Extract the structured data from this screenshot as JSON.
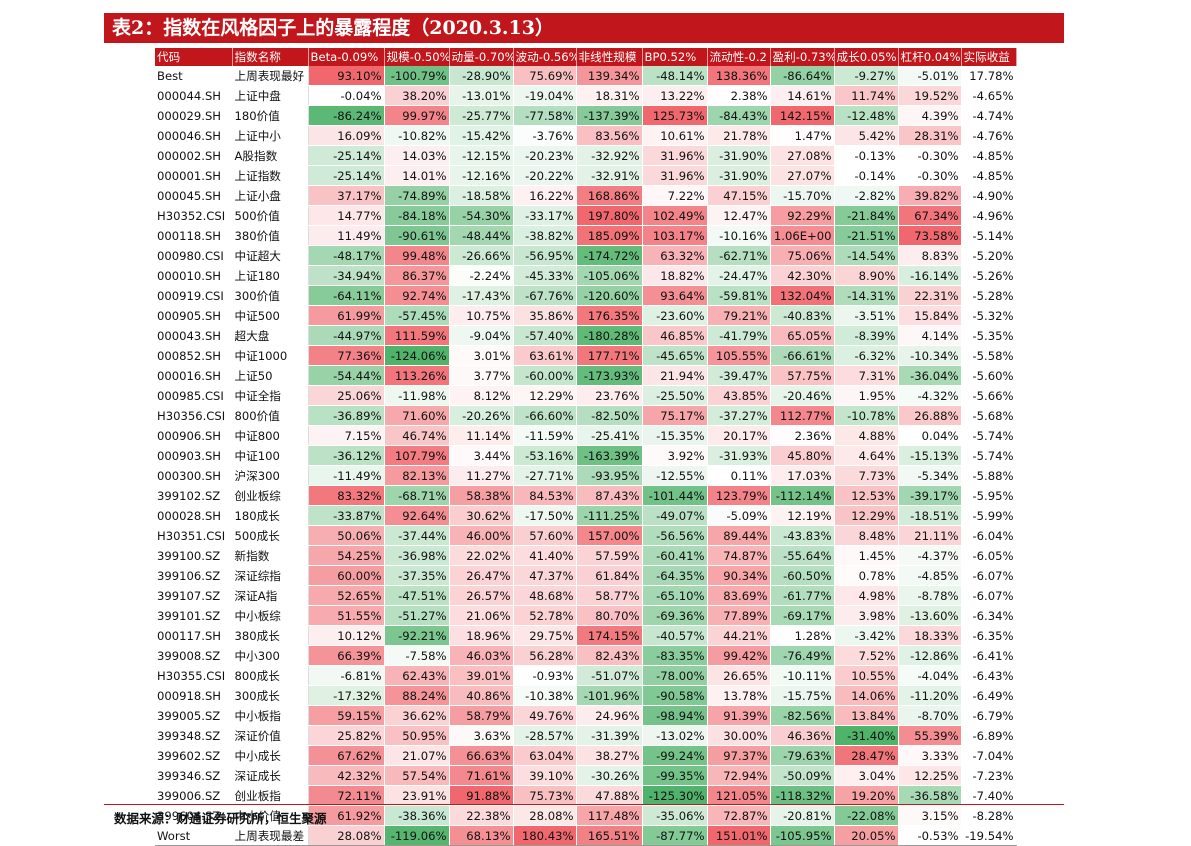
{
  "title": "表2：指数在风格因子上的暴露程度（2020.3.13）",
  "source": "数据来源：财通证券研究所，恒生聚源",
  "colors": {
    "header_bg": "#c0161c",
    "header_text": "#ffffff",
    "positive_max": "#f0686e",
    "negative_max": "#4fb36a"
  },
  "headers": [
    "代码",
    "指数名称",
    "Beta-0.09%",
    "规模-0.50%",
    "动量-0.70%",
    "波动-0.56%",
    "非线性规模",
    "BP0.52%",
    "流动性-0.2",
    "盈利-0.73%",
    "成长0.05%",
    "杠杆0.04%",
    "实际收益"
  ],
  "rows": [
    [
      "Best",
      "上周表现最好",
      "93.10%",
      "-100.79%",
      "-28.90%",
      "75.69%",
      "139.34%",
      "-48.14%",
      "138.36%",
      "-86.64%",
      "-9.27%",
      "-5.01%",
      "17.78%"
    ],
    [
      "000044.SH",
      "上证中盘",
      "-0.04%",
      "38.20%",
      "-13.01%",
      "-19.04%",
      "18.31%",
      "13.22%",
      "2.38%",
      "14.61%",
      "11.74%",
      "19.52%",
      "-4.65%"
    ],
    [
      "000029.SH",
      "180价值",
      "-86.24%",
      "99.97%",
      "-25.77%",
      "-77.58%",
      "-137.39%",
      "125.73%",
      "-84.43%",
      "142.15%",
      "-12.48%",
      "4.39%",
      "-4.74%"
    ],
    [
      "000046.SH",
      "上证中小",
      "16.09%",
      "-10.82%",
      "-15.42%",
      "-3.76%",
      "83.56%",
      "10.61%",
      "21.78%",
      "1.47%",
      "5.42%",
      "28.31%",
      "-4.76%"
    ],
    [
      "000002.SH",
      "A股指数",
      "-25.14%",
      "14.03%",
      "-12.15%",
      "-20.23%",
      "-32.92%",
      "31.96%",
      "-31.90%",
      "27.08%",
      "-0.13%",
      "-0.30%",
      "-4.85%"
    ],
    [
      "000001.SH",
      "上证指数",
      "-25.14%",
      "14.01%",
      "-12.16%",
      "-20.22%",
      "-32.91%",
      "31.96%",
      "-31.90%",
      "27.07%",
      "-0.14%",
      "-0.30%",
      "-4.85%"
    ],
    [
      "000045.SH",
      "上证小盘",
      "37.17%",
      "-74.89%",
      "-18.58%",
      "16.22%",
      "168.86%",
      "7.22%",
      "47.15%",
      "-15.70%",
      "-2.82%",
      "39.82%",
      "-4.90%"
    ],
    [
      "H30352.CSI",
      "500价值",
      "14.77%",
      "-84.18%",
      "-54.30%",
      "-33.17%",
      "197.80%",
      "102.49%",
      "12.47%",
      "92.29%",
      "-21.84%",
      "67.34%",
      "-4.96%"
    ],
    [
      "000118.SH",
      "380价值",
      "11.49%",
      "-90.61%",
      "-48.44%",
      "-38.82%",
      "185.09%",
      "103.17%",
      "-10.16%",
      "1.06E+00",
      "-21.51%",
      "73.58%",
      "-5.14%"
    ],
    [
      "000980.CSI",
      "中证超大",
      "-48.17%",
      "99.48%",
      "-26.66%",
      "-56.95%",
      "-174.72%",
      "63.32%",
      "-62.71%",
      "75.06%",
      "-14.54%",
      "8.83%",
      "-5.20%"
    ],
    [
      "000010.SH",
      "上证180",
      "-34.94%",
      "86.37%",
      "-2.24%",
      "-45.33%",
      "-105.06%",
      "18.82%",
      "-24.47%",
      "42.30%",
      "8.90%",
      "-16.14%",
      "-5.26%"
    ],
    [
      "000919.CSI",
      "300价值",
      "-64.11%",
      "92.74%",
      "-17.43%",
      "-67.76%",
      "-120.60%",
      "93.64%",
      "-59.81%",
      "132.04%",
      "-14.31%",
      "22.31%",
      "-5.28%"
    ],
    [
      "000905.SH",
      "中证500",
      "61.99%",
      "-57.45%",
      "10.75%",
      "35.86%",
      "176.35%",
      "-23.60%",
      "79.21%",
      "-40.83%",
      "-3.51%",
      "15.84%",
      "-5.32%"
    ],
    [
      "000043.SH",
      "超大盘",
      "-44.97%",
      "111.59%",
      "-9.04%",
      "-57.40%",
      "-180.28%",
      "46.85%",
      "-41.79%",
      "65.05%",
      "-8.39%",
      "4.14%",
      "-5.35%"
    ],
    [
      "000852.SH",
      "中证1000",
      "77.36%",
      "-124.06%",
      "3.01%",
      "63.61%",
      "177.71%",
      "-45.65%",
      "105.55%",
      "-66.61%",
      "-6.32%",
      "-10.34%",
      "-5.58%"
    ],
    [
      "000016.SH",
      "上证50",
      "-54.44%",
      "113.26%",
      "3.77%",
      "-60.00%",
      "-173.93%",
      "21.94%",
      "-39.47%",
      "57.75%",
      "7.31%",
      "-36.04%",
      "-5.60%"
    ],
    [
      "000985.CSI",
      "中证全指",
      "25.06%",
      "-11.98%",
      "8.12%",
      "12.29%",
      "23.76%",
      "-25.50%",
      "43.85%",
      "-20.46%",
      "1.95%",
      "-4.32%",
      "-5.66%"
    ],
    [
      "H30356.CSI",
      "800价值",
      "-36.89%",
      "71.60%",
      "-20.26%",
      "-66.60%",
      "-82.50%",
      "75.17%",
      "-37.27%",
      "112.77%",
      "-10.78%",
      "26.88%",
      "-5.68%"
    ],
    [
      "000906.SH",
      "中证800",
      "7.15%",
      "46.74%",
      "11.14%",
      "-11.59%",
      "-25.41%",
      "-15.35%",
      "20.17%",
      "2.36%",
      "4.88%",
      "0.04%",
      "-5.74%"
    ],
    [
      "000903.SH",
      "中证100",
      "-36.12%",
      "107.79%",
      "3.44%",
      "-53.16%",
      "-163.39%",
      "3.92%",
      "-31.93%",
      "45.80%",
      "4.64%",
      "-15.13%",
      "-5.74%"
    ],
    [
      "000300.SH",
      "沪深300",
      "-11.49%",
      "82.13%",
      "11.27%",
      "-27.71%",
      "-93.95%",
      "-12.55%",
      "0.11%",
      "17.03%",
      "7.73%",
      "-5.34%",
      "-5.88%"
    ],
    [
      "399102.SZ",
      "创业板综",
      "83.32%",
      "-68.71%",
      "58.38%",
      "84.53%",
      "87.43%",
      "-101.44%",
      "123.79%",
      "-112.14%",
      "12.53%",
      "-39.17%",
      "-5.95%"
    ],
    [
      "000028.SH",
      "180成长",
      "-33.87%",
      "92.64%",
      "30.62%",
      "-17.50%",
      "-111.25%",
      "-49.07%",
      "-5.09%",
      "12.19%",
      "12.29%",
      "-18.51%",
      "-5.99%"
    ],
    [
      "H30351.CSI",
      "500成长",
      "50.06%",
      "-37.44%",
      "46.00%",
      "57.60%",
      "157.00%",
      "-56.56%",
      "89.44%",
      "-43.83%",
      "8.48%",
      "21.11%",
      "-6.04%"
    ],
    [
      "399100.SZ",
      "新指数",
      "54.25%",
      "-36.98%",
      "22.02%",
      "41.40%",
      "57.59%",
      "-60.41%",
      "74.87%",
      "-55.64%",
      "1.45%",
      "-4.37%",
      "-6.05%"
    ],
    [
      "399106.SZ",
      "深证综指",
      "60.00%",
      "-37.35%",
      "26.47%",
      "47.37%",
      "61.84%",
      "-64.35%",
      "90.34%",
      "-60.50%",
      "0.78%",
      "-4.85%",
      "-6.07%"
    ],
    [
      "399107.SZ",
      "深证A指",
      "52.65%",
      "-47.51%",
      "26.57%",
      "48.68%",
      "58.77%",
      "-65.10%",
      "83.69%",
      "-61.77%",
      "4.98%",
      "-8.78%",
      "-6.07%"
    ],
    [
      "399101.SZ",
      "中小板综",
      "51.55%",
      "-51.27%",
      "21.06%",
      "52.78%",
      "80.70%",
      "-69.36%",
      "77.89%",
      "-69.17%",
      "3.98%",
      "-13.60%",
      "-6.34%"
    ],
    [
      "000117.SH",
      "380成长",
      "10.12%",
      "-92.21%",
      "18.96%",
      "29.75%",
      "174.15%",
      "-40.57%",
      "44.21%",
      "1.28%",
      "-3.42%",
      "18.33%",
      "-6.35%"
    ],
    [
      "399008.SZ",
      "中小300",
      "66.39%",
      "-7.58%",
      "46.03%",
      "56.28%",
      "82.43%",
      "-83.35%",
      "99.42%",
      "-76.49%",
      "7.52%",
      "-12.86%",
      "-6.41%"
    ],
    [
      "H30355.CSI",
      "800成长",
      "-6.81%",
      "62.43%",
      "39.01%",
      "-0.93%",
      "-51.07%",
      "-78.00%",
      "26.65%",
      "-10.11%",
      "10.55%",
      "-4.04%",
      "-6.43%"
    ],
    [
      "000918.SH",
      "300成长",
      "-17.32%",
      "88.24%",
      "40.86%",
      "-10.38%",
      "-101.96%",
      "-90.58%",
      "13.78%",
      "-15.75%",
      "14.06%",
      "-11.20%",
      "-6.49%"
    ],
    [
      "399005.SZ",
      "中小板指",
      "59.15%",
      "36.62%",
      "58.79%",
      "49.76%",
      "24.96%",
      "-98.94%",
      "91.39%",
      "-82.56%",
      "13.84%",
      "-8.70%",
      "-6.79%"
    ],
    [
      "399348.SZ",
      "深证价值",
      "25.82%",
      "50.95%",
      "3.63%",
      "-28.57%",
      "-31.39%",
      "-13.02%",
      "30.00%",
      "46.36%",
      "-31.40%",
      "55.39%",
      "-6.89%"
    ],
    [
      "399602.SZ",
      "中小成长",
      "67.62%",
      "21.07%",
      "66.63%",
      "63.04%",
      "38.27%",
      "-99.24%",
      "97.37%",
      "-79.63%",
      "28.47%",
      "3.33%",
      "-7.04%"
    ],
    [
      "399346.SZ",
      "深证成长",
      "42.32%",
      "57.54%",
      "71.61%",
      "39.10%",
      "-30.26%",
      "-99.35%",
      "72.94%",
      "-50.09%",
      "3.04%",
      "12.25%",
      "-7.23%"
    ],
    [
      "399006.SZ",
      "创业板指",
      "72.11%",
      "23.91%",
      "91.88%",
      "75.73%",
      "47.88%",
      "-125.30%",
      "121.05%",
      "-118.32%",
      "19.20%",
      "-36.58%",
      "-7.40%"
    ],
    [
      "399604.SZ",
      "中小价值",
      "61.92%",
      "-38.36%",
      "22.38%",
      "28.08%",
      "117.48%",
      "-35.06%",
      "72.87%",
      "-20.81%",
      "-22.08%",
      "3.15%",
      "-8.28%"
    ],
    [
      "Worst",
      "上周表现最差",
      "28.08%",
      "-119.06%",
      "68.13%",
      "180.43%",
      "165.51%",
      "-87.77%",
      "151.01%",
      "-105.95%",
      "20.05%",
      "-0.53%",
      "-19.54%"
    ]
  ]
}
